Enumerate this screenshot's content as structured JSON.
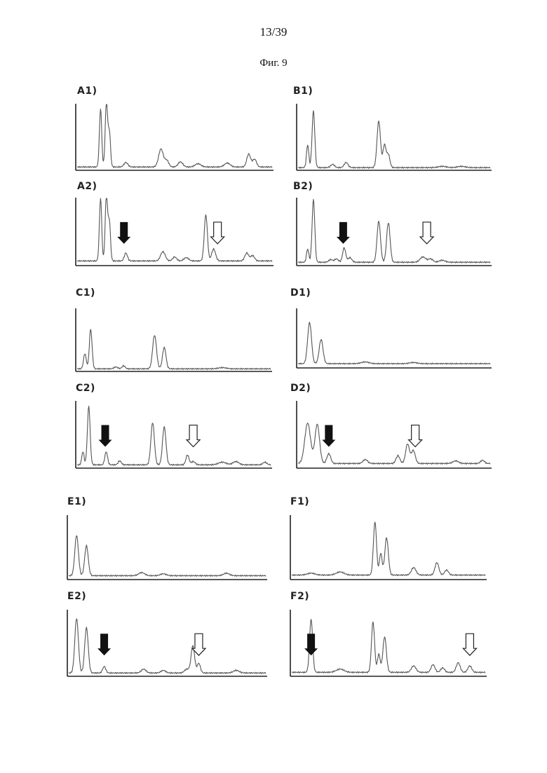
{
  "page": {
    "number": "13/39",
    "figure_title": "Фиг. 9"
  },
  "colors": {
    "trace": "#555555",
    "axis": "#222222",
    "arrow_filled": "#111111",
    "arrow_open_fill": "#ffffff"
  },
  "chart_data": [
    {
      "id": "A1",
      "type": "line",
      "label": "A1)",
      "peaks": [
        [
          0.12,
          0.9,
          0.006
        ],
        [
          0.15,
          1.0,
          0.006
        ],
        [
          0.165,
          0.55,
          0.006
        ],
        [
          0.25,
          0.07,
          0.01
        ],
        [
          0.43,
          0.28,
          0.012
        ],
        [
          0.46,
          0.1,
          0.01
        ],
        [
          0.53,
          0.08,
          0.012
        ],
        [
          0.62,
          0.05,
          0.015
        ],
        [
          0.77,
          0.06,
          0.015
        ],
        [
          0.88,
          0.2,
          0.01
        ],
        [
          0.91,
          0.12,
          0.01
        ]
      ],
      "baseline": 0.03,
      "arrows": []
    },
    {
      "id": "B1",
      "type": "line",
      "label": "B1)",
      "peaks": [
        [
          0.05,
          0.35,
          0.006
        ],
        [
          0.08,
          0.88,
          0.007
        ],
        [
          0.18,
          0.05,
          0.01
        ],
        [
          0.25,
          0.08,
          0.01
        ],
        [
          0.42,
          0.72,
          0.009
        ],
        [
          0.45,
          0.35,
          0.008
        ],
        [
          0.47,
          0.2,
          0.008
        ],
        [
          0.75,
          0.02,
          0.02
        ],
        [
          0.85,
          0.02,
          0.02
        ]
      ],
      "baseline": 0.02,
      "arrows": []
    },
    {
      "id": "A2",
      "type": "line",
      "label": "A2)",
      "peaks": [
        [
          0.12,
          0.95,
          0.006
        ],
        [
          0.15,
          1.0,
          0.006
        ],
        [
          0.165,
          0.6,
          0.006
        ],
        [
          0.25,
          0.12,
          0.008
        ],
        [
          0.44,
          0.14,
          0.012
        ],
        [
          0.5,
          0.06,
          0.01
        ],
        [
          0.56,
          0.05,
          0.012
        ],
        [
          0.66,
          0.7,
          0.008
        ],
        [
          0.7,
          0.18,
          0.01
        ],
        [
          0.87,
          0.12,
          0.01
        ],
        [
          0.9,
          0.08,
          0.01
        ]
      ],
      "baseline": 0.05,
      "arrows": [
        {
          "x": 0.24,
          "kind": "filled"
        },
        {
          "x": 0.72,
          "kind": "open"
        }
      ]
    },
    {
      "id": "B2",
      "type": "line",
      "label": "B2)",
      "peaks": [
        [
          0.05,
          0.2,
          0.006
        ],
        [
          0.08,
          0.95,
          0.007
        ],
        [
          0.17,
          0.04,
          0.01
        ],
        [
          0.2,
          0.05,
          0.01
        ],
        [
          0.24,
          0.22,
          0.008
        ],
        [
          0.27,
          0.07,
          0.01
        ],
        [
          0.42,
          0.62,
          0.009
        ],
        [
          0.47,
          0.6,
          0.009
        ],
        [
          0.65,
          0.08,
          0.015
        ],
        [
          0.69,
          0.05,
          0.012
        ],
        [
          0.75,
          0.03,
          0.015
        ]
      ],
      "baseline": 0.03,
      "arrows": [
        {
          "x": 0.235,
          "kind": "filled"
        },
        {
          "x": 0.67,
          "kind": "open"
        }
      ]
    },
    {
      "id": "C1",
      "type": "line",
      "label": "C1)",
      "peaks": [
        [
          0.04,
          0.25,
          0.007
        ],
        [
          0.07,
          0.65,
          0.007
        ],
        [
          0.2,
          0.03,
          0.01
        ],
        [
          0.24,
          0.05,
          0.008
        ],
        [
          0.4,
          0.55,
          0.01
        ],
        [
          0.45,
          0.35,
          0.009
        ],
        [
          0.75,
          0.02,
          0.02
        ]
      ],
      "baseline": 0.02,
      "arrows": []
    },
    {
      "id": "D1",
      "type": "line",
      "label": "D1)",
      "peaks": [
        [
          0.06,
          0.72,
          0.01
        ],
        [
          0.12,
          0.42,
          0.01
        ],
        [
          0.35,
          0.03,
          0.02
        ],
        [
          0.6,
          0.02,
          0.02
        ]
      ],
      "baseline": 0.05,
      "arrows": []
    },
    {
      "id": "C2",
      "type": "line",
      "label": "C2)",
      "peaks": [
        [
          0.03,
          0.2,
          0.006
        ],
        [
          0.06,
          0.9,
          0.007
        ],
        [
          0.15,
          0.2,
          0.007
        ],
        [
          0.22,
          0.06,
          0.008
        ],
        [
          0.39,
          0.65,
          0.009
        ],
        [
          0.45,
          0.58,
          0.009
        ],
        [
          0.57,
          0.15,
          0.008
        ],
        [
          0.6,
          0.05,
          0.01
        ],
        [
          0.75,
          0.04,
          0.02
        ],
        [
          0.82,
          0.05,
          0.015
        ],
        [
          0.97,
          0.04,
          0.01
        ]
      ],
      "baseline": 0.03,
      "arrows": [
        {
          "x": 0.145,
          "kind": "filled"
        },
        {
          "x": 0.6,
          "kind": "open"
        }
      ]
    },
    {
      "id": "D2",
      "type": "line",
      "label": "D2)",
      "peaks": [
        [
          0.05,
          0.62,
          0.015
        ],
        [
          0.1,
          0.6,
          0.012
        ],
        [
          0.16,
          0.15,
          0.01
        ],
        [
          0.35,
          0.06,
          0.012
        ],
        [
          0.52,
          0.12,
          0.01
        ],
        [
          0.57,
          0.3,
          0.01
        ],
        [
          0.6,
          0.2,
          0.01
        ],
        [
          0.82,
          0.04,
          0.015
        ],
        [
          0.96,
          0.05,
          0.01
        ]
      ],
      "baseline": 0.05,
      "arrows": [
        {
          "x": 0.16,
          "kind": "filled"
        },
        {
          "x": 0.61,
          "kind": "open"
        }
      ]
    },
    {
      "id": "E1",
      "type": "line",
      "label": "E1)",
      "peaks": [
        [
          0.04,
          0.65,
          0.009
        ],
        [
          0.09,
          0.48,
          0.009
        ],
        [
          0.37,
          0.05,
          0.015
        ],
        [
          0.48,
          0.03,
          0.015
        ],
        [
          0.8,
          0.04,
          0.015
        ]
      ],
      "baseline": 0.04,
      "arrows": []
    },
    {
      "id": "F1",
      "type": "line",
      "label": "F1)",
      "peaks": [
        [
          0.1,
          0.03,
          0.02
        ],
        [
          0.25,
          0.05,
          0.02
        ],
        [
          0.43,
          0.85,
          0.008
        ],
        [
          0.46,
          0.35,
          0.007
        ],
        [
          0.49,
          0.6,
          0.009
        ],
        [
          0.63,
          0.12,
          0.012
        ],
        [
          0.75,
          0.2,
          0.01
        ],
        [
          0.8,
          0.08,
          0.01
        ]
      ],
      "baseline": 0.05,
      "arrows": []
    },
    {
      "id": "E2",
      "type": "line",
      "label": "E2)",
      "peaks": [
        [
          0.04,
          0.85,
          0.009
        ],
        [
          0.09,
          0.7,
          0.009
        ],
        [
          0.18,
          0.1,
          0.008
        ],
        [
          0.38,
          0.06,
          0.012
        ],
        [
          0.48,
          0.04,
          0.012
        ],
        [
          0.6,
          0.06,
          0.012
        ],
        [
          0.63,
          0.42,
          0.009
        ],
        [
          0.66,
          0.15,
          0.008
        ],
        [
          0.85,
          0.04,
          0.015
        ]
      ],
      "baseline": 0.03,
      "arrows": [
        {
          "x": 0.18,
          "kind": "filled"
        },
        {
          "x": 0.66,
          "kind": "open"
        }
      ]
    },
    {
      "id": "F2",
      "type": "line",
      "label": "F2)",
      "peaks": [
        [
          0.1,
          0.82,
          0.008
        ],
        [
          0.25,
          0.05,
          0.02
        ],
        [
          0.42,
          0.78,
          0.008
        ],
        [
          0.45,
          0.28,
          0.007
        ],
        [
          0.48,
          0.55,
          0.009
        ],
        [
          0.63,
          0.1,
          0.012
        ],
        [
          0.73,
          0.12,
          0.01
        ],
        [
          0.78,
          0.07,
          0.01
        ],
        [
          0.86,
          0.15,
          0.01
        ],
        [
          0.92,
          0.1,
          0.01
        ]
      ],
      "baseline": 0.04,
      "arrows": [
        {
          "x": 0.1,
          "kind": "filled"
        },
        {
          "x": 0.92,
          "kind": "open"
        }
      ]
    }
  ]
}
